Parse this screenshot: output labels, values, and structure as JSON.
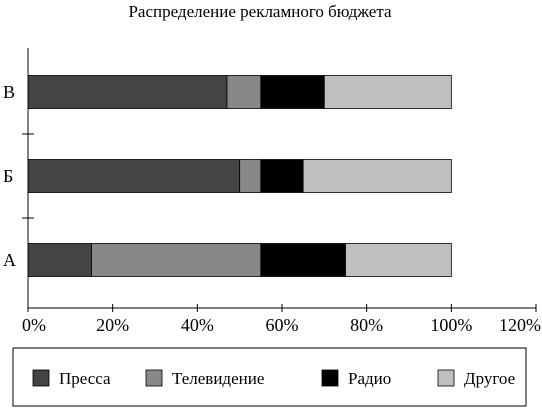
{
  "chart_data": {
    "type": "bar",
    "orientation": "horizontal",
    "stacked": true,
    "title": "Распределение рекламного бюджета",
    "categories": [
      "А",
      "Б",
      "В"
    ],
    "series": [
      {
        "name": "Пресса",
        "values": [
          15,
          50,
          47
        ],
        "color": "#444444"
      },
      {
        "name": "Телевидение",
        "values": [
          40,
          5,
          8
        ],
        "color": "#888888"
      },
      {
        "name": "Радио",
        "values": [
          20,
          10,
          15
        ],
        "color": "#000000"
      },
      {
        "name": "Другое",
        "values": [
          25,
          35,
          30
        ],
        "color": "#c0c0c0"
      }
    ],
    "xlim": [
      0,
      120
    ],
    "x_ticks": [
      "0%",
      "20%",
      "40%",
      "60%",
      "80%",
      "100%",
      "120%"
    ],
    "grid": false,
    "legend_position": "bottom"
  }
}
